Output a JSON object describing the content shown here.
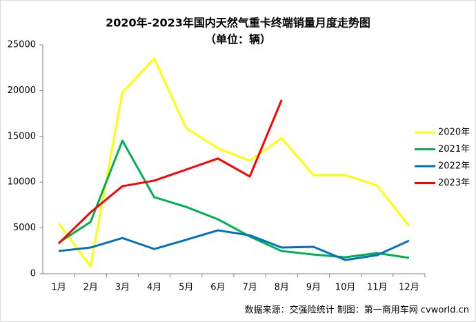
{
  "chart_data": {
    "type": "line",
    "title": "2020年-2023年国内天然气重卡终端销量月度走势图",
    "subtitle": "（单位：辆）",
    "source": "数据来源：交强险统计  制图：第一商用车网 cvworld.cn",
    "categories": [
      "1月",
      "2月",
      "3月",
      "4月",
      "5月",
      "6月",
      "7月",
      "8月",
      "9月",
      "10月",
      "11月",
      "12月"
    ],
    "series": [
      {
        "name": "2020年",
        "color": "#ffff00",
        "values": [
          5500,
          800,
          19800,
          23500,
          15900,
          13700,
          12350,
          14800,
          10770,
          10770,
          9640,
          5200
        ]
      },
      {
        "name": "2021年",
        "color": "#00b050",
        "values": [
          3400,
          5650,
          14530,
          8360,
          7300,
          5950,
          4070,
          2480,
          2100,
          1800,
          2260,
          1730
        ]
      },
      {
        "name": "2022年",
        "color": "#0070c0",
        "values": [
          2480,
          2860,
          3900,
          2700,
          3700,
          4740,
          4200,
          2860,
          2940,
          1500,
          2030,
          3610
        ]
      },
      {
        "name": "2023年",
        "color": "#ff0000",
        "values": [
          3300,
          6700,
          9560,
          10170,
          11370,
          12580,
          10620,
          18980,
          null,
          null,
          null,
          null
        ]
      }
    ],
    "ylim": [
      0,
      25000
    ],
    "yticks": [
      0,
      5000,
      10000,
      15000,
      20000,
      25000
    ],
    "grid": false,
    "legend": "right"
  }
}
